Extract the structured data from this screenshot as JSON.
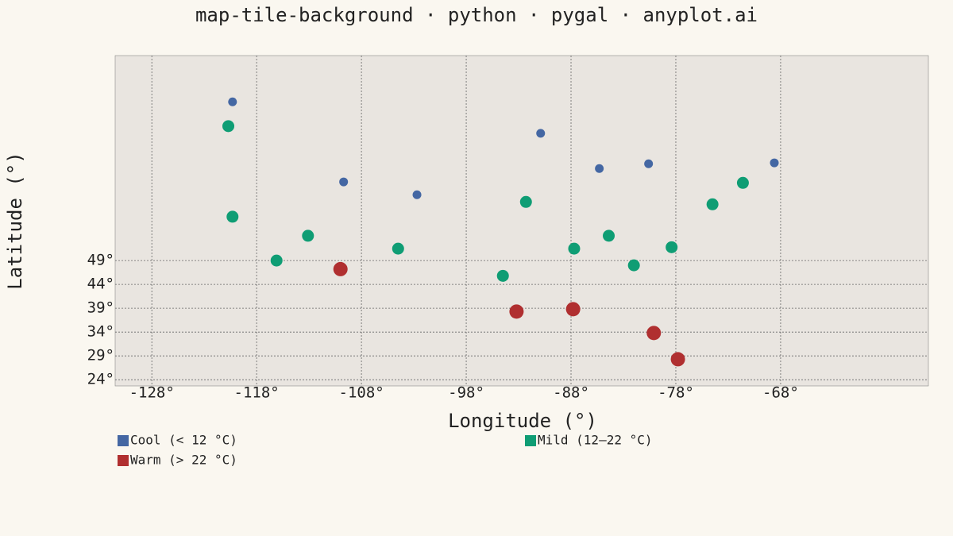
{
  "chart_data": {
    "type": "scatter",
    "title": "map-tile-background · python · pygal · anyplot.ai",
    "x_label": "Longitude (°)",
    "y_label": "Latitude (°)",
    "xlim": [
      -131.5,
      -53.9
    ],
    "ylim": [
      22.7,
      92
    ],
    "xticks": [
      {
        "value": -128,
        "label": "-128°"
      },
      {
        "value": -118,
        "label": "-118°"
      },
      {
        "value": -108,
        "label": "-108°"
      },
      {
        "value": -98,
        "label": "-98°"
      },
      {
        "value": -88,
        "label": "-88°"
      },
      {
        "value": -78,
        "label": "-78°"
      },
      {
        "value": -68,
        "label": "-68°"
      }
    ],
    "yticks": [
      {
        "value": 24,
        "label": "24°"
      },
      {
        "value": 29,
        "label": "29°"
      },
      {
        "value": 34,
        "label": "34°"
      },
      {
        "value": 39,
        "label": "39°"
      },
      {
        "value": 44,
        "label": "44°"
      },
      {
        "value": 49,
        "label": "49°"
      }
    ],
    "grid": true,
    "series": [
      {
        "name": "Cool (< 12 °C)",
        "color": "#4467a3",
        "x": [
          -120.3,
          -109.7,
          -102.7,
          -90.9,
          -85.3,
          -80.6,
          -68.6
        ],
        "values": [
          82.3,
          65.5,
          62.8,
          75.7,
          68.3,
          69.3,
          69.5
        ]
      },
      {
        "name": "Mild (12–22 °C)",
        "color": "#0f9d74",
        "x": [
          -120.7,
          -120.3,
          -116.1,
          -113.1,
          -104.5,
          -94.5,
          -92.3,
          -87.7,
          -84.4,
          -82.0,
          -78.4,
          -74.5,
          -71.6
        ],
        "values": [
          77.2,
          58.2,
          49.0,
          54.2,
          51.5,
          45.8,
          61.3,
          51.5,
          54.2,
          48.0,
          51.8,
          60.8,
          65.3
        ]
      },
      {
        "name": "Warm (> 22 °C)",
        "color": "#b02f30",
        "x": [
          -110.0,
          -93.2,
          -87.8,
          -80.1,
          -77.8
        ],
        "values": [
          47.2,
          38.3,
          38.8,
          33.8,
          28.3
        ]
      }
    ]
  }
}
